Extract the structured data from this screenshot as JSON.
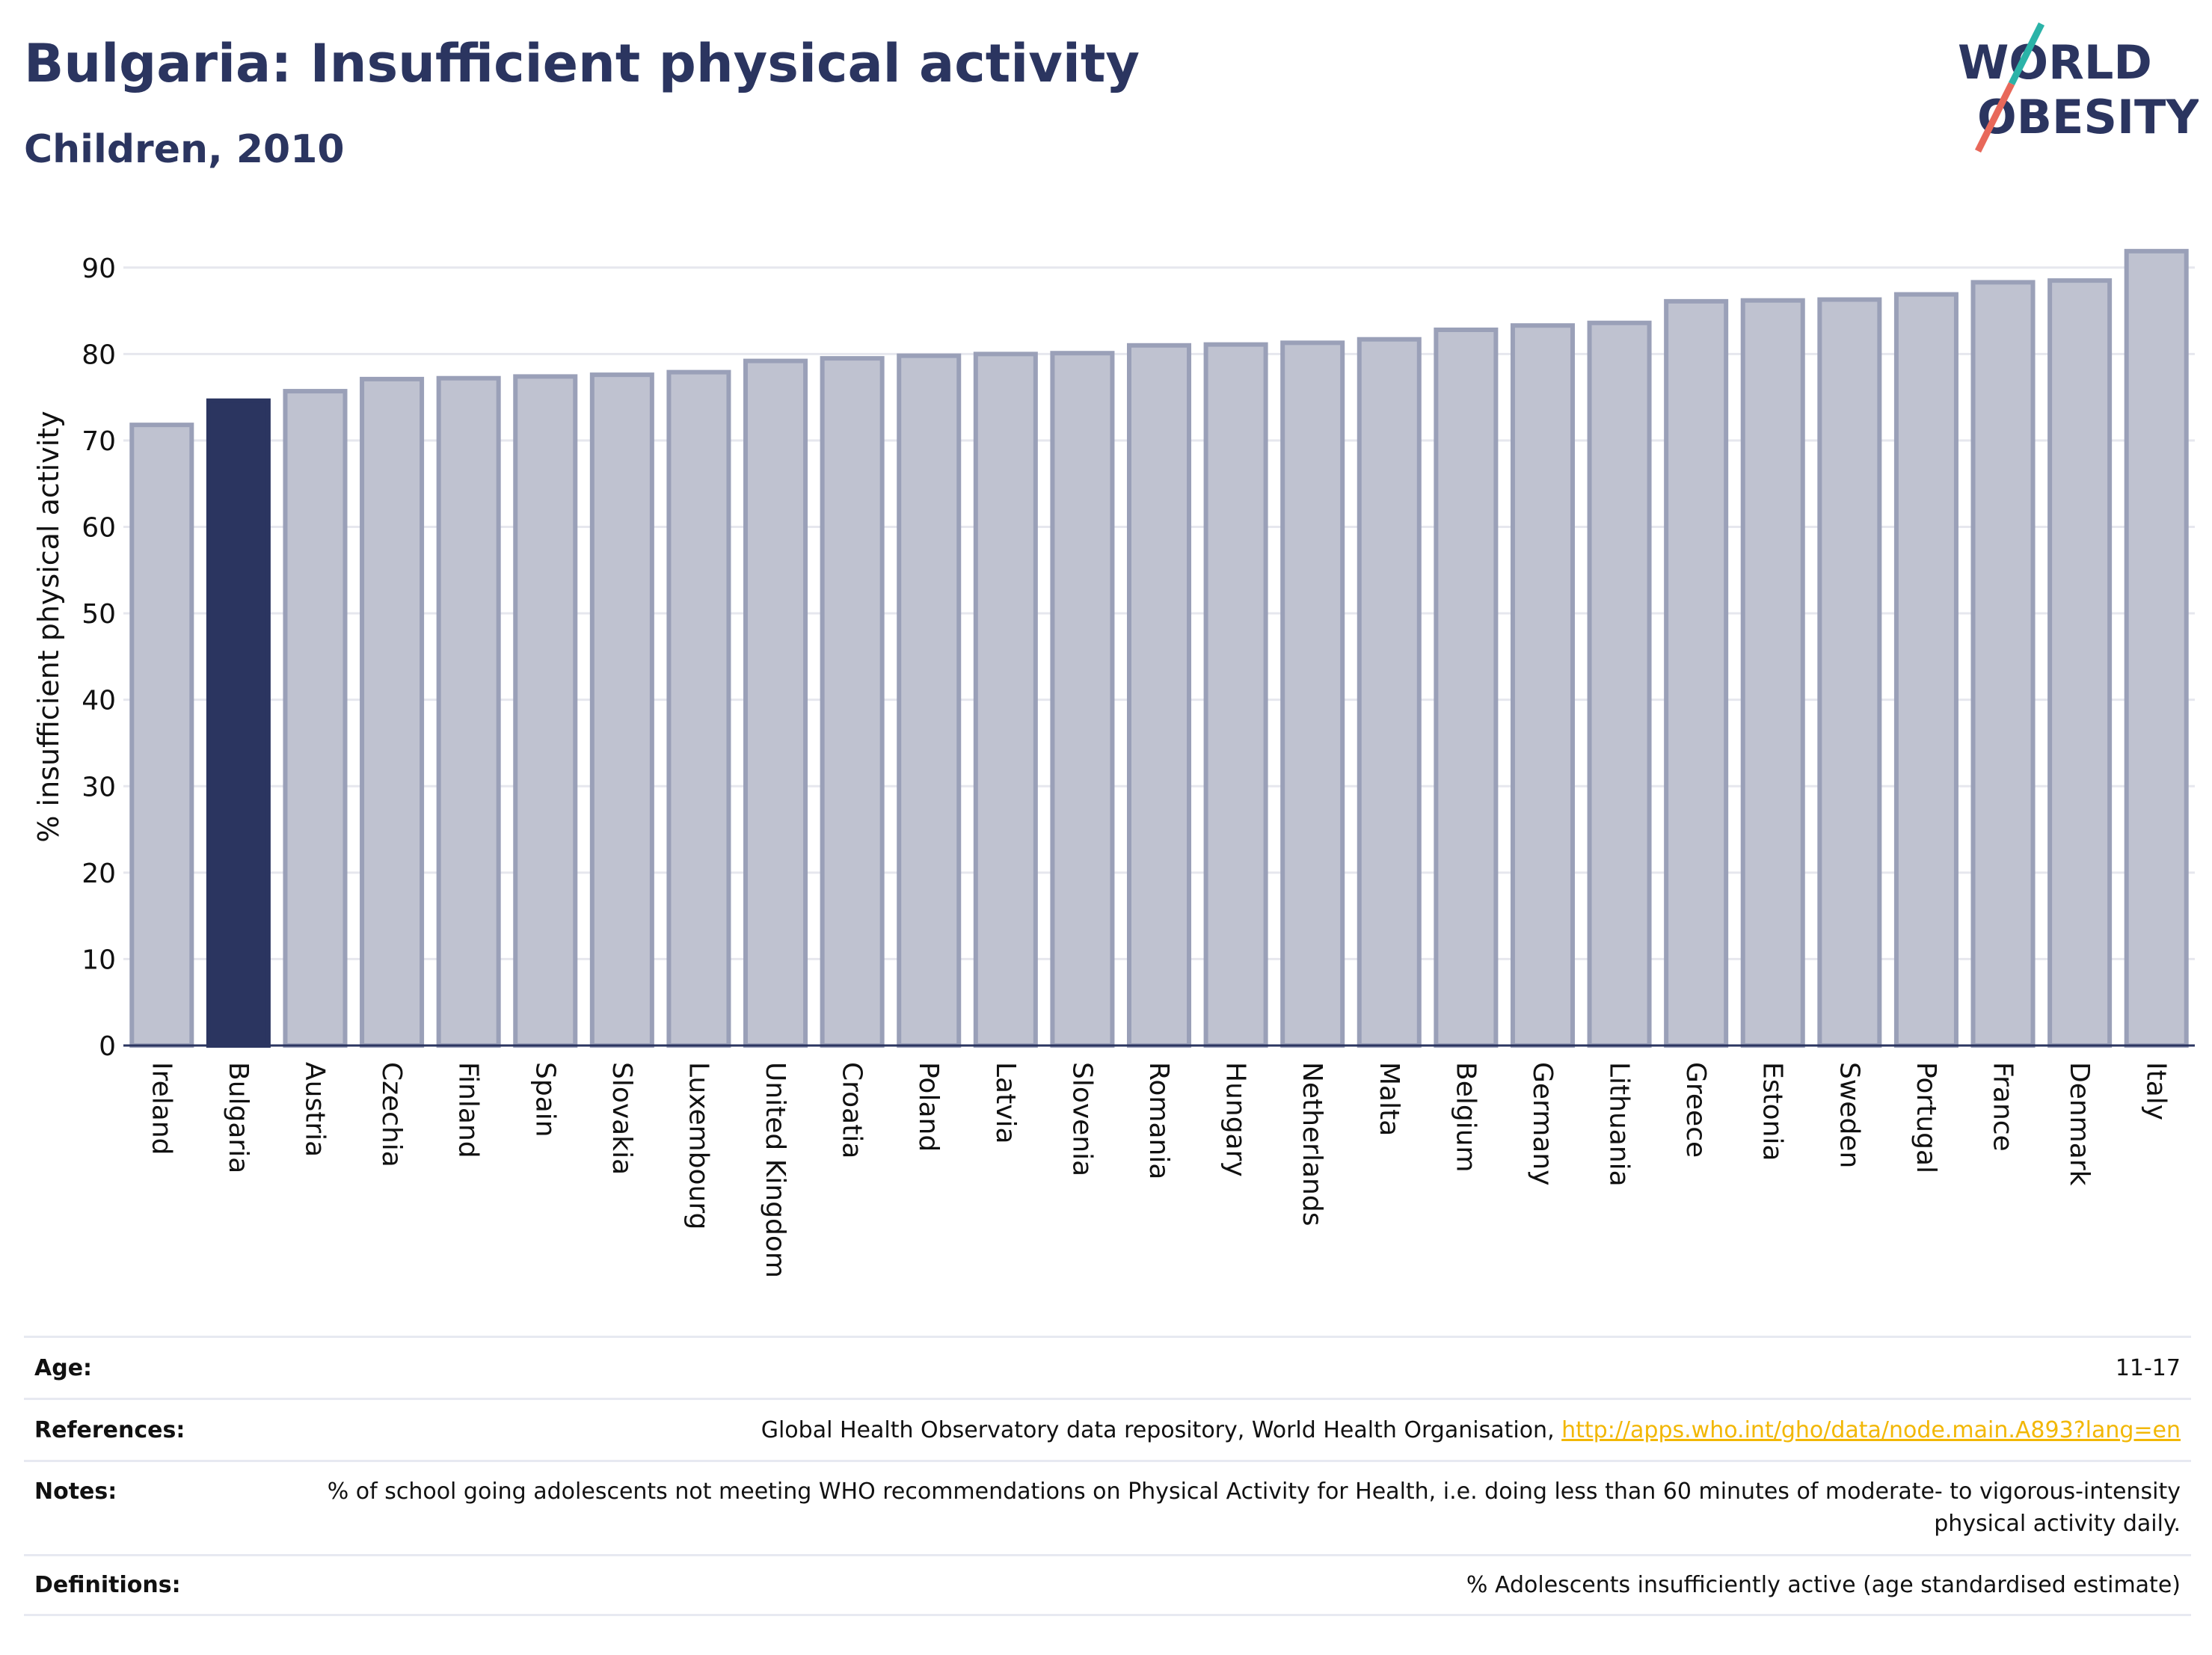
{
  "header": {
    "title": "Bulgaria: Insufficient physical activity",
    "subtitle": "Children, 2010"
  },
  "logo": {
    "line1": "WORLD",
    "line2": "OBESITY",
    "colors": {
      "text": "#2b3560",
      "slash_top": "#2bb3a8",
      "slash_bottom": "#e8685a"
    }
  },
  "chart_data": {
    "type": "bar",
    "categories": [
      "Ireland",
      "Bulgaria",
      "Austria",
      "Czechia",
      "Finland",
      "Spain",
      "Slovakia",
      "Luxembourg",
      "United Kingdom",
      "Croatia",
      "Poland",
      "Latvia",
      "Slovenia",
      "Romania",
      "Hungary",
      "Netherlands",
      "Malta",
      "Belgium",
      "Germany",
      "Lithuania",
      "Greece",
      "Estonia",
      "Sweden",
      "Portugal",
      "France",
      "Denmark",
      "Italy"
    ],
    "values": [
      71.8,
      74.6,
      75.7,
      77.1,
      77.2,
      77.4,
      77.6,
      77.9,
      79.2,
      79.5,
      79.8,
      80.0,
      80.1,
      81.0,
      81.1,
      81.3,
      81.7,
      82.8,
      83.3,
      83.6,
      86.1,
      86.2,
      86.3,
      86.9,
      88.3,
      88.5,
      91.9
    ],
    "highlight": "Bulgaria",
    "ylabel": "% insufficient physical activity",
    "xlabel": "",
    "ylim": [
      0,
      95
    ],
    "yticks": [
      0,
      10,
      20,
      30,
      40,
      50,
      60,
      70,
      80,
      90
    ],
    "grid": true,
    "colors": {
      "bar": "#bfc2d0",
      "bar_edge": "#9aa0b8",
      "highlight": "#2b3560",
      "grid": "#e6e7ee",
      "axis": "#2b3560"
    }
  },
  "meta": {
    "age": {
      "label": "Age:",
      "value": "11-17"
    },
    "references": {
      "label": "References:",
      "text": "Global Health Observatory data repository, World Health Organisation, ",
      "link": "http://apps.who.int/gho/data/node.main.A893?lang=en"
    },
    "notes": {
      "label": "Notes:",
      "text": "% of school going adolescents not meeting WHO recommendations on Physical Activity for Health, i.e. doing less than 60 minutes of moderate- to vigorous-intensity physical activity daily."
    },
    "definitions": {
      "label": "Definitions:",
      "text": "% Adolescents insufficiently active (age standardised estimate)"
    }
  }
}
